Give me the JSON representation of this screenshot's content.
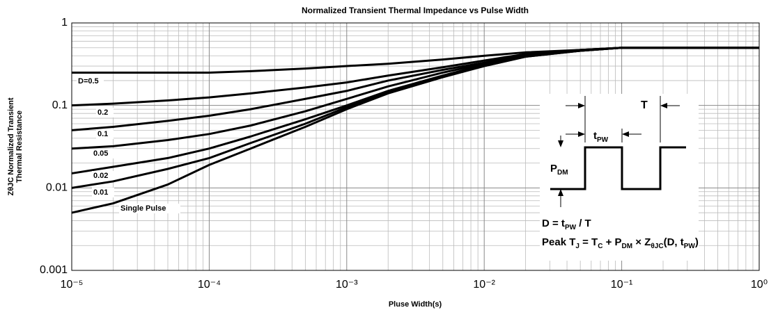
{
  "chart_data": {
    "type": "line",
    "title": "Normalized Transient Thermal Impedance vs Pulse Width",
    "xlabel": "Pluse Width(s)",
    "ylabel": [
      "ZθJC Normalized Transient",
      "Thermal Resistance"
    ],
    "xscale": "log",
    "yscale": "log",
    "grid": true,
    "xlim": [
      1e-05,
      1
    ],
    "ylim": [
      0.001,
      1
    ],
    "xticks": [
      {
        "value": 1e-05,
        "label": "10⁻⁵"
      },
      {
        "value": 0.0001,
        "label": "10⁻⁴"
      },
      {
        "value": 0.001,
        "label": "10⁻³"
      },
      {
        "value": 0.01,
        "label": "10⁻²"
      },
      {
        "value": 0.1,
        "label": "10⁻¹"
      },
      {
        "value": 1,
        "label": "10⁰"
      }
    ],
    "yticks": [
      0.001,
      0.01,
      0.1,
      1
    ],
    "x": [
      1e-05,
      2e-05,
      5e-05,
      0.0001,
      0.0002,
      0.0005,
      0.001,
      0.002,
      0.005,
      0.01,
      0.02,
      0.05,
      0.1,
      1
    ],
    "series": [
      {
        "name": "D=0.5",
        "color": "#000000",
        "values": [
          0.25,
          0.25,
          0.25,
          0.25,
          0.26,
          0.28,
          0.3,
          0.32,
          0.36,
          0.4,
          0.44,
          0.47,
          0.5,
          0.5
        ]
      },
      {
        "name": "0.2",
        "color": "#000000",
        "values": [
          0.1,
          0.105,
          0.115,
          0.125,
          0.14,
          0.165,
          0.19,
          0.23,
          0.29,
          0.35,
          0.42,
          0.47,
          0.5,
          0.5
        ]
      },
      {
        "name": "0.1",
        "color": "#000000",
        "values": [
          0.05,
          0.055,
          0.065,
          0.075,
          0.09,
          0.12,
          0.15,
          0.2,
          0.27,
          0.33,
          0.41,
          0.47,
          0.5,
          0.5
        ]
      },
      {
        "name": "0.05",
        "color": "#000000",
        "values": [
          0.03,
          0.032,
          0.038,
          0.045,
          0.057,
          0.085,
          0.12,
          0.17,
          0.25,
          0.32,
          0.4,
          0.46,
          0.5,
          0.5
        ]
      },
      {
        "name": "0.02",
        "color": "#000000",
        "values": [
          0.015,
          0.018,
          0.023,
          0.03,
          0.042,
          0.068,
          0.1,
          0.15,
          0.23,
          0.31,
          0.4,
          0.46,
          0.5,
          0.5
        ]
      },
      {
        "name": "0.01",
        "color": "#000000",
        "values": [
          0.01,
          0.012,
          0.017,
          0.023,
          0.035,
          0.06,
          0.095,
          0.145,
          0.225,
          0.3,
          0.39,
          0.46,
          0.5,
          0.5
        ]
      },
      {
        "name": "Single Pulse",
        "color": "#000000",
        "values": [
          0.005,
          0.0065,
          0.011,
          0.019,
          0.03,
          0.055,
          0.09,
          0.14,
          0.22,
          0.3,
          0.39,
          0.46,
          0.5,
          0.5
        ]
      }
    ],
    "annotations": [
      [
        "T"
      ],
      [
        "t",
        "PW"
      ],
      [
        "P",
        "DM"
      ],
      [
        "D = t",
        "PW",
        " / T"
      ],
      [
        "Peak T",
        "J",
        " = T",
        "C",
        " + P",
        "DM",
        " × Z",
        "θJC",
        "(D, t",
        "PW",
        ")"
      ]
    ]
  }
}
